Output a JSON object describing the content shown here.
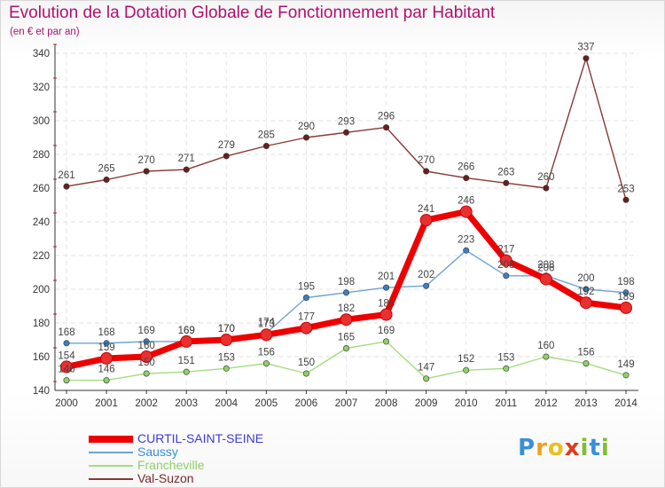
{
  "title": "Evolution de la Dotation Globale de Fonctionnement par Habitant",
  "subtitle": "(en € et par an)",
  "logo": {
    "text": [
      "P",
      "r",
      "o",
      "x",
      "i",
      "t",
      "i"
    ],
    "colors": [
      "#3a8fd6",
      "#f0a020",
      "#e8c020",
      "#e03a20",
      "#7cc030",
      "#3a8fd6",
      "#7cc030"
    ]
  },
  "chart_data": {
    "type": "line",
    "title": "Evolution de la Dotation Globale de Fonctionnement par Habitant",
    "ylabel": "(en € et par an)",
    "xlabel": "",
    "x": [
      "2000",
      "2001",
      "2002",
      "2003",
      "2004",
      "2005",
      "2006",
      "2007",
      "2008",
      "2009",
      "2010",
      "2011",
      "2012",
      "2013",
      "2014"
    ],
    "ylim": [
      140,
      340
    ],
    "yticks": [
      "140",
      "160",
      "180",
      "200",
      "220",
      "240",
      "260",
      "280",
      "300",
      "320",
      "340"
    ],
    "grid": true,
    "series": [
      {
        "name": "CURTIL-SAINT-SEINE",
        "values": [
          154,
          159,
          160,
          169,
          170,
          173,
          177,
          182,
          185,
          241,
          246,
          217,
          206,
          192,
          189
        ],
        "color": "#ee0000",
        "marker": "#e83030",
        "labelColor": "#555555",
        "weight": "heavy",
        "legendColor": "#3a3ae0"
      },
      {
        "name": "Saussy",
        "values": [
          168,
          168,
          169,
          169,
          170,
          174,
          195,
          198,
          201,
          202,
          223,
          208,
          208,
          200,
          198
        ],
        "color": "#6fa3d4",
        "marker": "#3e7fc0",
        "labelColor": "#555555",
        "weight": "thin",
        "legendColor": "#3a8fd6"
      },
      {
        "name": "Francheville",
        "values": [
          146,
          146,
          150,
          151,
          153,
          156,
          150,
          165,
          169,
          147,
          152,
          153,
          160,
          156,
          149
        ],
        "color": "#a6dc82",
        "marker": "#8fd068",
        "labelColor": "#555555",
        "weight": "thin",
        "legendColor": "#8fd068"
      },
      {
        "name": "Val-Suzon",
        "values": [
          261,
          265,
          270,
          271,
          279,
          285,
          290,
          293,
          296,
          270,
          266,
          263,
          260,
          337,
          253
        ],
        "color": "#8a3838",
        "marker": "#6a1e1e",
        "labelColor": "#555555",
        "weight": "thin",
        "legendColor": "#7a2a2a"
      }
    ]
  }
}
